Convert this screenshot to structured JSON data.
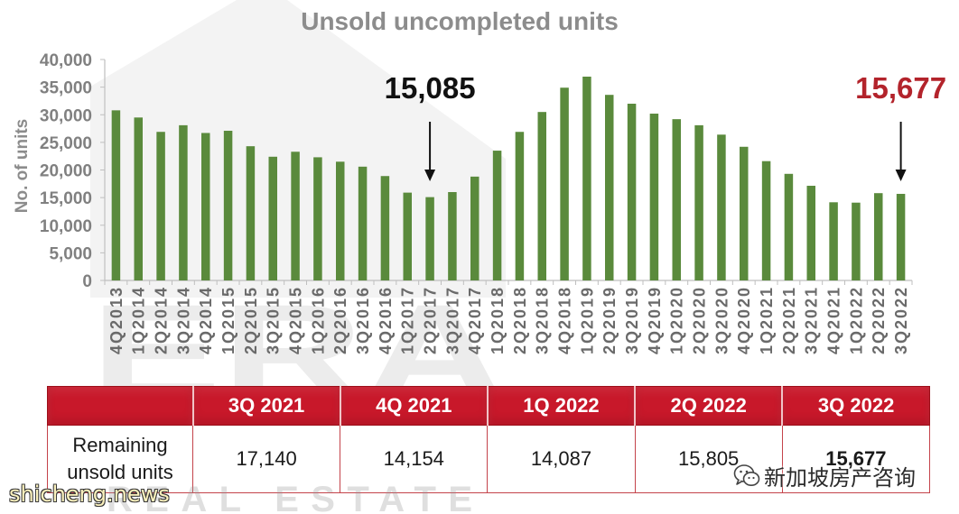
{
  "chart_data": {
    "type": "bar",
    "title": "Unsold uncompleted units",
    "xlabel": "",
    "ylabel": "No. of units",
    "ylim": [
      0,
      40000
    ],
    "yticks": [
      0,
      5000,
      10000,
      15000,
      20000,
      25000,
      30000,
      35000,
      40000
    ],
    "ytick_labels": [
      "0",
      "5,000",
      "10,000",
      "15,000",
      "20,000",
      "25,000",
      "30,000",
      "35,000",
      "40,000"
    ],
    "categories": [
      "4Q2013",
      "1Q2014",
      "2Q2014",
      "3Q2014",
      "4Q2014",
      "1Q2015",
      "2Q2015",
      "3Q2015",
      "4Q2015",
      "1Q2016",
      "2Q2016",
      "3Q2016",
      "4Q2016",
      "1Q2017",
      "2Q2017",
      "3Q2017",
      "4Q2017",
      "1Q2018",
      "2Q2018",
      "3Q2018",
      "4Q2018",
      "1Q2019",
      "2Q2019",
      "3Q2019",
      "4Q2019",
      "1Q2020",
      "2Q2020",
      "3Q2020",
      "4Q2020",
      "1Q2021",
      "2Q2021",
      "3Q2021",
      "4Q2021",
      "1Q2022",
      "2Q2022",
      "3Q2022"
    ],
    "values": [
      30800,
      29500,
      26900,
      28100,
      26700,
      27100,
      24300,
      22400,
      23300,
      22300,
      21500,
      20600,
      18900,
      15900,
      15085,
      16000,
      18800,
      23500,
      26900,
      30500,
      34900,
      36900,
      33600,
      32000,
      30200,
      29200,
      28100,
      26400,
      24200,
      21600,
      19300,
      17140,
      14154,
      14087,
      15805,
      15677
    ],
    "annotations": [
      {
        "category": "2Q2017",
        "text": "15,085",
        "color": "#111111"
      },
      {
        "category": "3Q2022",
        "text": "15,677",
        "color": "#b3232b"
      }
    ],
    "bar_color": "#5a8a3c",
    "grid": false,
    "legend": "none"
  },
  "table": {
    "headers": [
      "3Q 2021",
      "4Q 2021",
      "1Q 2022",
      "2Q 2022",
      "3Q 2022"
    ],
    "row_label": [
      "Remaining",
      "unsold units"
    ],
    "values": [
      "17,140",
      "14,154",
      "14,087",
      "15,805",
      "15,677"
    ],
    "header_color": "#c8182a"
  },
  "watermarks": {
    "logo_letters": "ERA",
    "logo_tagline": "REAL ESTATE",
    "site": "shicheng.news",
    "wechat_account": "新加坡房产咨询",
    "wechat_icon": "wechat-icon"
  }
}
